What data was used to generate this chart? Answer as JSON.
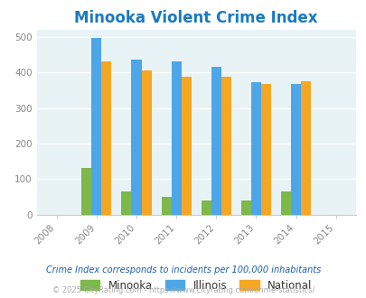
{
  "title": "Minooka Violent Crime Index",
  "title_color": "#1a7abf",
  "years": [
    2008,
    2009,
    2010,
    2011,
    2012,
    2013,
    2014,
    2015
  ],
  "data_years": [
    2009,
    2010,
    2011,
    2012,
    2013,
    2014
  ],
  "minooka": [
    132,
    65,
    50,
    40,
    40,
    65
  ],
  "illinois": [
    497,
    435,
    430,
    415,
    373,
    368
  ],
  "national": [
    430,
    405,
    387,
    387,
    368,
    375
  ],
  "minooka_color": "#7db84a",
  "illinois_color": "#4da6e8",
  "national_color": "#f5a623",
  "bg_color": "#e8f3f5",
  "ylim": [
    0,
    520
  ],
  "yticks": [
    0,
    100,
    200,
    300,
    400,
    500
  ],
  "bar_width": 0.25,
  "legend_labels": [
    "Minooka",
    "Illinois",
    "National"
  ],
  "footnote1": "Crime Index corresponds to incidents per 100,000 inhabitants",
  "footnote2": "© 2025 CityRating.com - https://www.cityrating.com/crime-statistics/",
  "footnote1_color": "#1a5fa8",
  "footnote2_color": "#aaaaaa"
}
